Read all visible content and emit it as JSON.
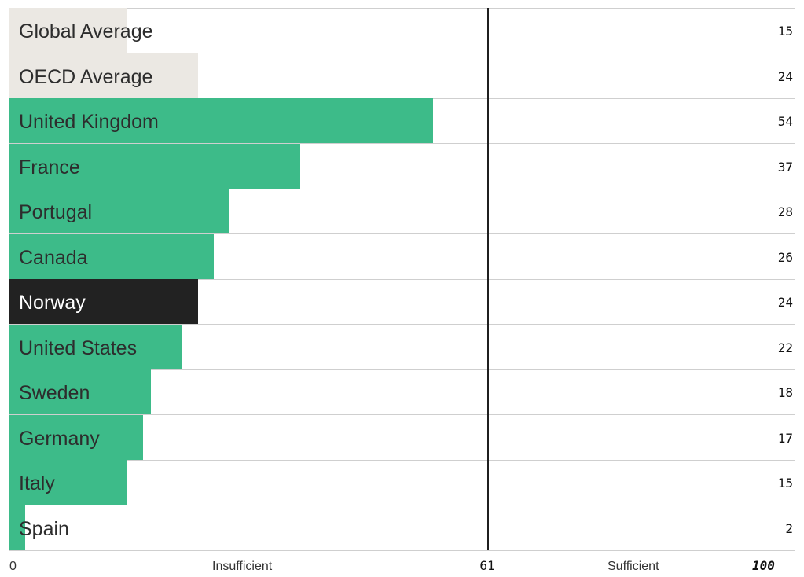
{
  "chart_data": {
    "type": "bar",
    "orientation": "horizontal",
    "categories": [
      "Global Average",
      "OECD Average",
      "United Kingdom",
      "France",
      "Portugal",
      "Canada",
      "Norway",
      "United States",
      "Sweden",
      "Germany",
      "Italy",
      "Spain"
    ],
    "values": [
      15,
      24,
      54,
      37,
      28,
      26,
      24,
      22,
      18,
      17,
      15,
      2
    ],
    "bar_colors": [
      "#ebe8e3",
      "#ebe8e3",
      "#3dbb89",
      "#3dbb89",
      "#3dbb89",
      "#3dbb89",
      "#222222",
      "#3dbb89",
      "#3dbb89",
      "#3dbb89",
      "#3dbb89",
      "#3dbb89"
    ],
    "label_colors": [
      "#2d2d2d",
      "#2d2d2d",
      "#2d2d2d",
      "#2d2d2d",
      "#2d2d2d",
      "#2d2d2d",
      "#ffffff",
      "#2d2d2d",
      "#2d2d2d",
      "#2d2d2d",
      "#2d2d2d",
      "#2d2d2d"
    ],
    "xlim": [
      0,
      100
    ],
    "threshold": 61,
    "x_axis": {
      "min_label": "0",
      "max_label": "100",
      "threshold_label": "61",
      "left_zone_label": "Insufficient",
      "right_zone_label": "Sufficient"
    },
    "grid": false,
    "legend": "none"
  }
}
